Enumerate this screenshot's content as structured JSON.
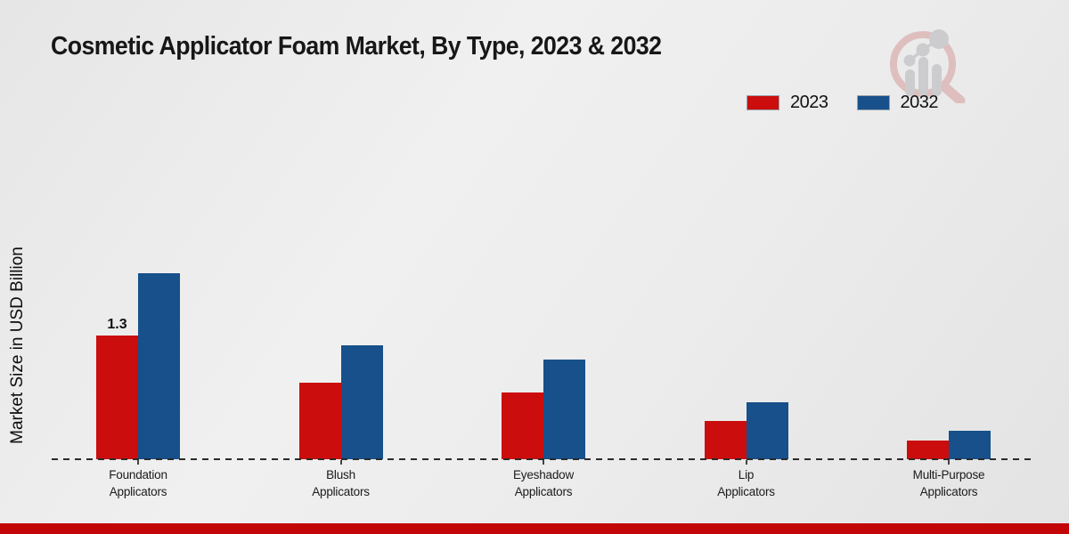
{
  "chart_data": {
    "type": "bar",
    "title": "Cosmetic Applicator Foam Market, By Type, 2023 & 2032",
    "ylabel": "Market Size in USD Billion",
    "xlabel": "",
    "categories": [
      [
        "Foundation",
        "Applicators"
      ],
      [
        "Blush",
        "Applicators"
      ],
      [
        "Eyeshadow",
        "Applicators"
      ],
      [
        "Lip",
        "Applicators"
      ],
      [
        "Multi-Purpose",
        "Applicators"
      ]
    ],
    "series": [
      {
        "name": "2023",
        "color": "#cb0d0e",
        "values": [
          1.3,
          0.8,
          0.7,
          0.4,
          0.2
        ]
      },
      {
        "name": "2032",
        "color": "#17508a",
        "values": [
          1.95,
          1.2,
          1.05,
          0.6,
          0.3
        ]
      }
    ],
    "annotations": [
      {
        "category_index": 0,
        "series_index": 0,
        "text": "1.3"
      }
    ],
    "ylim": [
      0,
      2.2
    ],
    "grid": false,
    "legend_position": "top-right",
    "baseline_style": "dashed"
  },
  "colors": {
    "accent_bottom_bar": "#c30505"
  },
  "icons": {
    "logo": "magnifier-bar-chart-watermark-icon"
  }
}
